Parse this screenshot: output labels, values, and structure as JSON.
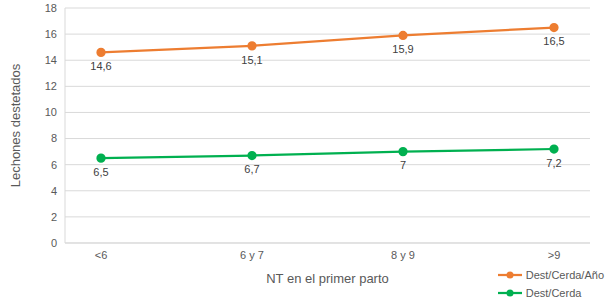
{
  "chart_data": {
    "type": "line",
    "x_label": "NT en el primer parto",
    "y_label": "Lechones destetados",
    "categories": [
      "<6",
      "6 y 7",
      "8 y 9",
      ">9"
    ],
    "series": [
      {
        "name": "Dest/Cerda/Año",
        "color": "#ED7D31",
        "marker": "circle",
        "values": [
          14.6,
          15.1,
          15.9,
          16.5
        ],
        "value_labels": [
          "14,6",
          "15,1",
          "15,9",
          "16,5"
        ]
      },
      {
        "name": "Dest/Cerda",
        "color": "#00B050",
        "marker": "circle",
        "values": [
          6.5,
          6.7,
          7,
          7.2
        ],
        "value_labels": [
          "6,5",
          "6,7",
          "7",
          "7,2"
        ]
      }
    ],
    "ylim": [
      0,
      18
    ],
    "yticks": [
      0,
      2,
      4,
      6,
      8,
      10,
      12,
      14,
      16,
      18
    ],
    "grid": true,
    "data_labels": true,
    "legend": "lower right"
  }
}
